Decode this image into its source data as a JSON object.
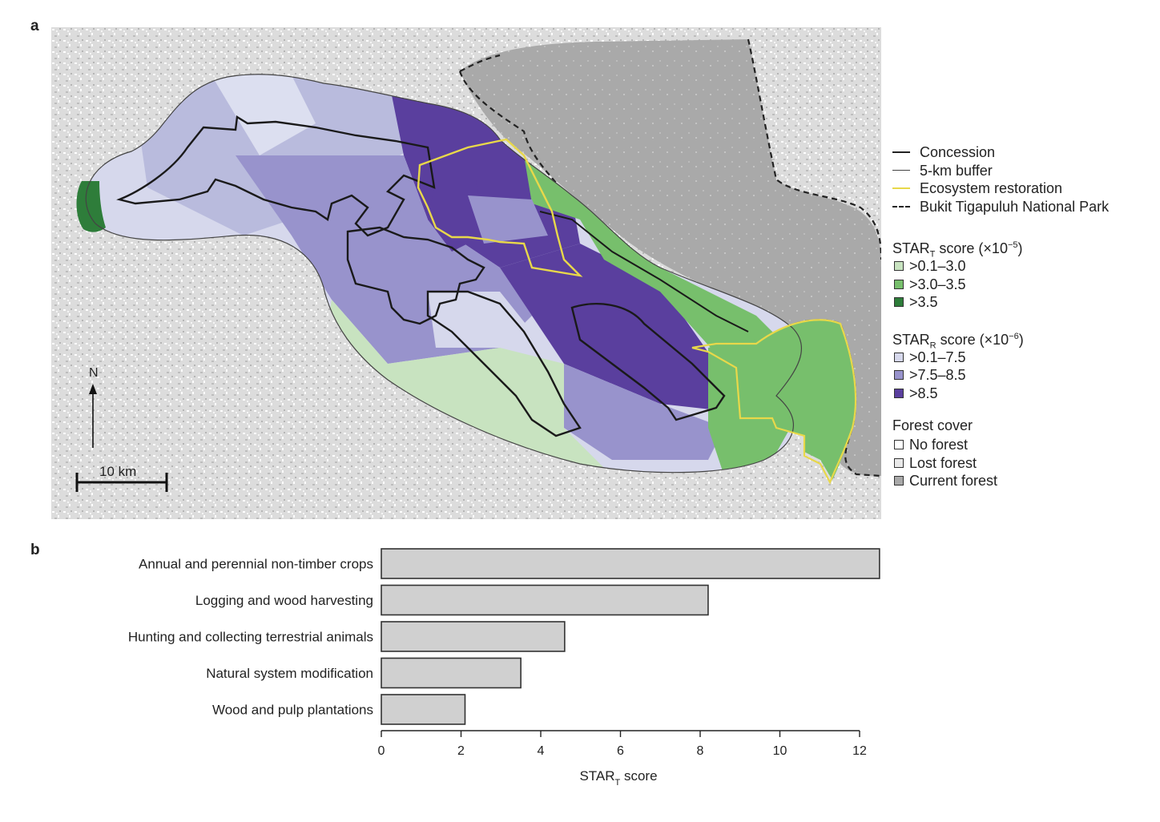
{
  "panel_a": {
    "letter": "a",
    "north_label": "N",
    "scale_label": "10 km",
    "legend_lines": [
      {
        "label": "Concession",
        "color": "#222222",
        "style": "solid-thick"
      },
      {
        "label": "5-km buffer",
        "color": "#444444",
        "style": "solid-thin"
      },
      {
        "label": "Ecosystem restoration",
        "color": "#e8d84a",
        "style": "solid"
      },
      {
        "label": "Bukit Tigapuluh National Park",
        "color": "#222222",
        "style": "dashed"
      }
    ],
    "star_t_heading": {
      "prefix": "STAR",
      "sub": "T",
      "middle": " score (×10",
      "sup": "−5",
      "suffix": ")"
    },
    "star_t_classes": [
      {
        "label": ">0.1–3.0",
        "color": "#c8e3c0"
      },
      {
        "label": ">3.0–3.5",
        "color": "#77bf6c"
      },
      {
        "label": ">3.5",
        "color": "#2e7d3a"
      }
    ],
    "star_r_heading": {
      "prefix": "STAR",
      "sub": "R",
      "middle": " score (×10",
      "sup": "−6",
      "suffix": ")"
    },
    "star_r_classes": [
      {
        "label": ">0.1–7.5",
        "color": "#d6d8ec"
      },
      {
        "label": ">7.5–8.5",
        "color": "#9893cc"
      },
      {
        "label": ">8.5",
        "color": "#5a3f9e"
      }
    ],
    "forest_heading": "Forest cover",
    "forest_classes": [
      {
        "label": "No forest",
        "color": "#ffffff"
      },
      {
        "label": "Lost forest",
        "color": "#e9e9e9"
      },
      {
        "label": "Current forest",
        "color": "#a9a9a9"
      }
    ]
  },
  "panel_b": {
    "letter": "b"
  },
  "chart_data": {
    "type": "bar",
    "orientation": "horizontal",
    "categories": [
      "Annual and perennial non-timber crops",
      "Logging and wood harvesting",
      "Hunting and collecting terrestrial animals",
      "Natural system modification",
      "Wood and pulp plantations"
    ],
    "values": [
      12.5,
      8.2,
      4.6,
      3.5,
      2.1
    ],
    "xlabel": {
      "prefix": "STAR",
      "sub": "T",
      "suffix": " score"
    },
    "xlim": [
      0,
      12.5
    ],
    "xticks": [
      0,
      2,
      4,
      6,
      8,
      10,
      12
    ],
    "bar_color": "#d0d0d0",
    "bar_edge": "#333333",
    "grid": false
  }
}
